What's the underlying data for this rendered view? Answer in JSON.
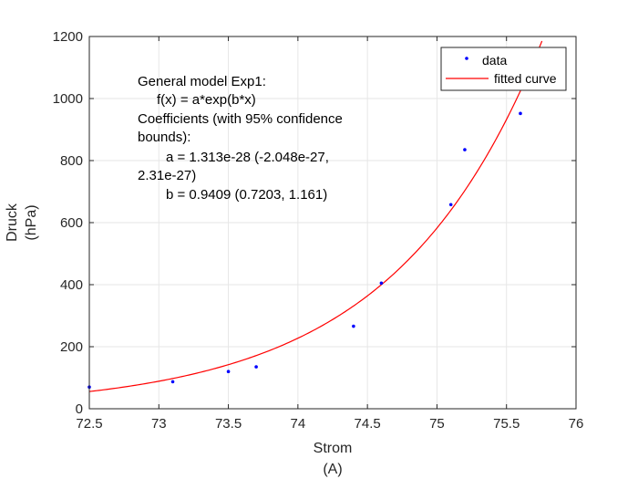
{
  "chart_data": {
    "type": "scatter",
    "xlabel_lines": [
      "Strom",
      "(A)"
    ],
    "ylabel_lines": [
      "Druck",
      "(hPa)"
    ],
    "xlim": [
      72.5,
      76
    ],
    "ylim": [
      0,
      1200
    ],
    "xticks": [
      72.5,
      73,
      73.5,
      74,
      74.5,
      75,
      75.5,
      76
    ],
    "yticks": [
      0,
      200,
      400,
      600,
      800,
      1000,
      1200
    ],
    "xtick_labels": [
      "72.5",
      "73",
      "73.5",
      "74",
      "74.5",
      "75",
      "75.5",
      "76"
    ],
    "ytick_labels": [
      "0",
      "200",
      "400",
      "600",
      "800",
      "1000",
      "1200"
    ],
    "grid": true,
    "legend_position": "top-right",
    "series": [
      {
        "name": "data",
        "kind": "points",
        "color": "#0000ff",
        "x": [
          72.5,
          73.1,
          73.5,
          73.7,
          74.4,
          74.6,
          75.1,
          75.2,
          75.6
        ],
        "y": [
          70,
          87,
          120,
          135,
          266,
          405,
          658,
          835,
          952
        ]
      },
      {
        "name": "fitted curve",
        "kind": "line",
        "color": "#ff0000",
        "model": {
          "a": 1.313e-28,
          "b": 0.9409
        }
      }
    ],
    "annotation_lines": [
      "General model Exp1:",
      "f(x) = a*exp(b*x)",
      "Coefficients (with 95% confidence",
      "bounds):",
      "a =   1.313e-28  (-2.048e-27,",
      "2.31e-27)",
      "b =      0.9409  (0.7203, 1.161)"
    ]
  }
}
